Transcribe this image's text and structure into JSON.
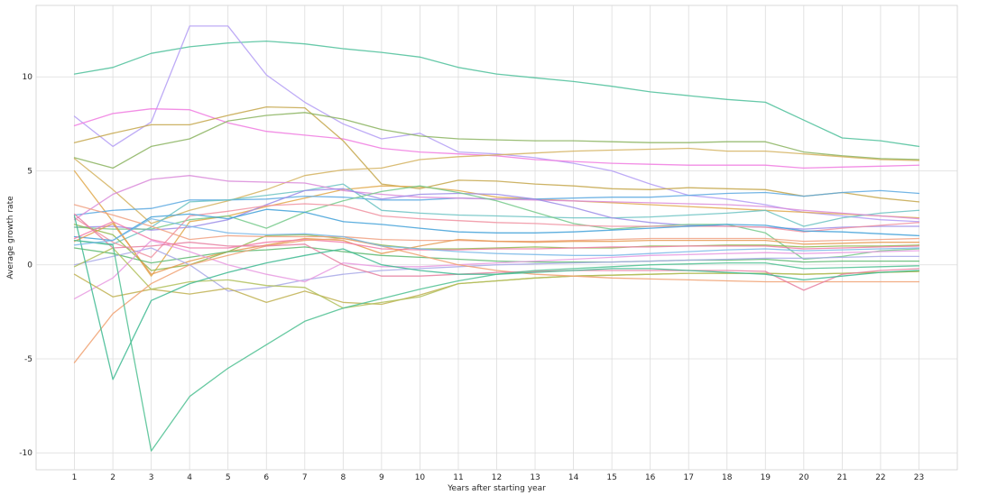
{
  "chart_data": {
    "type": "line",
    "xlabel": "Years after starting year",
    "ylabel": "Average growth rate",
    "x": [
      1,
      2,
      3,
      4,
      5,
      6,
      7,
      8,
      9,
      10,
      11,
      12,
      13,
      14,
      15,
      16,
      17,
      18,
      19,
      20,
      21,
      22,
      23
    ],
    "xlim": [
      0.0,
      24.0
    ],
    "ylim": [
      -10.9,
      13.8
    ],
    "xticks": [
      "1",
      "2",
      "3",
      "4",
      "5",
      "6",
      "7",
      "8",
      "9",
      "10",
      "11",
      "12",
      "13",
      "14",
      "15",
      "16",
      "17",
      "18",
      "19",
      "20",
      "21",
      "22",
      "23"
    ],
    "yticks": [
      -10,
      -5,
      0,
      5,
      10
    ],
    "ytick_labels": [
      "-10",
      "-5",
      "0",
      "5",
      "10"
    ],
    "grid": true,
    "legend": "none",
    "series": [
      {
        "color": "#4cbf9a",
        "values": [
          10.15,
          10.5,
          11.25,
          11.6,
          11.8,
          11.9,
          11.75,
          11.5,
          11.3,
          11.05,
          10.5,
          10.15,
          9.95,
          9.75,
          9.5,
          9.2,
          9.0,
          8.8,
          8.65,
          7.7,
          6.75,
          6.6,
          6.3
        ]
      },
      {
        "color": "#b39cf5",
        "values": [
          7.9,
          6.3,
          7.6,
          12.7,
          12.7,
          10.1,
          8.65,
          7.5,
          6.7,
          7.0,
          6.0,
          5.9,
          5.7,
          5.4,
          5.0,
          4.3,
          3.7,
          3.5,
          3.2,
          2.8,
          2.6,
          2.4,
          2.3
        ]
      },
      {
        "color": "#f07ae0",
        "values": [
          7.4,
          8.05,
          8.3,
          8.25,
          7.55,
          7.1,
          6.9,
          6.7,
          6.2,
          6.0,
          5.9,
          5.8,
          5.6,
          5.5,
          5.4,
          5.35,
          5.3,
          5.3,
          5.3,
          5.15,
          5.2,
          5.25,
          5.3
        ]
      },
      {
        "color": "#c4a64a",
        "values": [
          6.5,
          7.0,
          7.45,
          7.45,
          7.95,
          8.4,
          8.35,
          6.6,
          4.3,
          4.05,
          4.5,
          4.45,
          4.3,
          4.2,
          4.05,
          4.0,
          4.1,
          4.05,
          4.0,
          3.65,
          3.85,
          3.55,
          3.35
        ]
      },
      {
        "color": "#8ab35e",
        "values": [
          5.7,
          5.15,
          6.3,
          6.7,
          7.65,
          7.95,
          8.1,
          7.75,
          7.2,
          6.85,
          6.7,
          6.65,
          6.6,
          6.6,
          6.55,
          6.5,
          6.5,
          6.55,
          6.55,
          6.0,
          5.8,
          5.65,
          5.6
        ]
      },
      {
        "color": "#d4b25e",
        "values": [
          5.65,
          4.0,
          2.2,
          2.9,
          3.4,
          4.0,
          4.75,
          5.05,
          5.15,
          5.6,
          5.75,
          5.85,
          5.95,
          6.05,
          6.1,
          6.15,
          6.2,
          6.05,
          6.05,
          5.9,
          5.75,
          5.6,
          5.55
        ]
      },
      {
        "color": "#e0a84a",
        "values": [
          5.0,
          2.3,
          -0.6,
          2.3,
          2.6,
          3.1,
          3.55,
          4.0,
          4.2,
          4.15,
          3.95,
          3.6,
          3.5,
          3.4,
          3.3,
          3.2,
          3.1,
          3.0,
          2.9,
          2.8,
          2.7,
          2.6,
          2.5
        ]
      },
      {
        "color": "#5aa8e0",
        "values": [
          2.65,
          2.9,
          3.0,
          3.45,
          3.45,
          3.5,
          3.65,
          3.6,
          3.45,
          3.45,
          3.55,
          3.5,
          3.5,
          3.55,
          3.6,
          3.6,
          3.7,
          3.8,
          3.85,
          3.65,
          3.85,
          3.95,
          3.8
        ]
      },
      {
        "color": "#6ac2c2",
        "values": [
          1.3,
          1.1,
          2.0,
          3.35,
          3.45,
          3.7,
          3.95,
          4.3,
          2.9,
          2.75,
          2.65,
          2.6,
          2.55,
          2.5,
          2.5,
          2.55,
          2.65,
          2.75,
          2.9,
          2.05,
          2.5,
          2.75,
          2.9
        ]
      },
      {
        "color": "#d98ad9",
        "values": [
          2.4,
          3.75,
          4.55,
          4.75,
          4.45,
          4.4,
          4.35,
          3.95,
          3.75,
          3.6,
          3.55,
          3.5,
          3.45,
          3.4,
          3.35,
          3.3,
          3.25,
          3.2,
          3.1,
          2.9,
          2.75,
          2.6,
          2.45
        ]
      },
      {
        "color": "#9b8ce8",
        "values": [
          2.0,
          2.05,
          1.85,
          2.0,
          2.4,
          3.2,
          3.95,
          4.05,
          3.5,
          3.75,
          3.8,
          3.75,
          3.5,
          3.05,
          2.5,
          2.25,
          2.1,
          2.05,
          2.0,
          1.9,
          2.0,
          2.05,
          2.05
        ]
      },
      {
        "color": "#74c98a",
        "values": [
          2.0,
          1.9,
          1.9,
          2.4,
          2.6,
          1.95,
          2.8,
          3.4,
          3.9,
          4.2,
          3.85,
          3.4,
          2.8,
          2.2,
          1.9,
          2.05,
          2.15,
          2.15,
          1.7,
          0.3,
          0.45,
          0.75,
          0.85
        ]
      },
      {
        "color": "#f090a0",
        "values": [
          2.5,
          1.2,
          0.4,
          2.6,
          2.85,
          3.15,
          3.25,
          3.15,
          2.6,
          2.45,
          2.35,
          2.25,
          2.2,
          2.1,
          2.05,
          2.05,
          2.05,
          2.05,
          2.0,
          1.75,
          1.95,
          2.1,
          2.25
        ]
      },
      {
        "color": "#8fb84e",
        "values": [
          2.15,
          1.6,
          -0.3,
          0.0,
          0.7,
          1.55,
          1.6,
          1.4,
          1.05,
          0.85,
          0.85,
          0.9,
          0.95,
          0.9,
          0.9,
          1.0,
          1.0,
          1.05,
          1.05,
          0.95,
          1.0,
          1.0,
          1.05
        ]
      },
      {
        "color": "#3fa0d8",
        "values": [
          1.5,
          1.3,
          2.55,
          2.7,
          2.45,
          2.95,
          2.8,
          2.3,
          2.15,
          1.95,
          1.75,
          1.7,
          1.7,
          1.75,
          1.85,
          1.95,
          2.05,
          2.15,
          2.1,
          1.8,
          1.75,
          1.65,
          1.55
        ]
      },
      {
        "color": "#f0a080",
        "values": [
          3.2,
          2.65,
          2.05,
          1.35,
          1.55,
          1.5,
          1.5,
          1.5,
          1.35,
          1.3,
          1.3,
          1.25,
          1.25,
          1.3,
          1.35,
          1.4,
          1.4,
          1.4,
          1.4,
          1.25,
          1.3,
          1.35,
          1.4
        ]
      },
      {
        "color": "#e59a50",
        "values": [
          1.25,
          2.2,
          -0.5,
          0.2,
          0.7,
          1.05,
          1.4,
          1.3,
          0.6,
          1.0,
          1.35,
          1.25,
          1.2,
          1.25,
          1.25,
          1.3,
          1.3,
          1.3,
          1.3,
          1.1,
          1.15,
          1.2,
          1.2
        ]
      },
      {
        "color": "#f27aa8",
        "values": [
          1.4,
          2.3,
          1.35,
          0.9,
          0.9,
          1.2,
          1.35,
          1.2,
          0.85,
          0.8,
          0.8,
          0.85,
          0.85,
          0.9,
          0.95,
          0.95,
          1.0,
          1.0,
          1.0,
          0.85,
          0.9,
          0.95,
          1.0
        ]
      },
      {
        "color": "#5cb870",
        "values": [
          0.9,
          0.6,
          0.1,
          0.4,
          0.7,
          0.8,
          0.95,
          0.7,
          0.5,
          0.4,
          0.3,
          0.2,
          0.15,
          0.15,
          0.15,
          0.2,
          0.25,
          0.25,
          0.3,
          0.15,
          0.2,
          0.2,
          0.2
        ]
      },
      {
        "color": "#a8a8e8",
        "values": [
          0.0,
          0.45,
          0.9,
          0.0,
          -1.4,
          -1.2,
          -0.8,
          -0.5,
          -0.3,
          -0.2,
          -0.1,
          0.0,
          0.05,
          0.1,
          0.15,
          0.2,
          0.25,
          0.3,
          0.35,
          0.35,
          0.4,
          0.45,
          0.45
        ]
      },
      {
        "color": "#e89ae0",
        "values": [
          -1.8,
          -0.7,
          1.3,
          0.7,
          0.0,
          -0.5,
          -0.9,
          0.1,
          -0.1,
          -0.1,
          0.0,
          0.1,
          0.2,
          0.3,
          0.4,
          0.5,
          0.55,
          0.6,
          0.65,
          0.6,
          0.65,
          0.7,
          0.75
        ]
      },
      {
        "color": "#c0b050",
        "values": [
          -0.5,
          -1.7,
          -1.3,
          -1.55,
          -1.25,
          -2.0,
          -1.4,
          -2.0,
          -2.1,
          -1.6,
          -1.0,
          -0.85,
          -0.7,
          -0.6,
          -0.55,
          -0.5,
          -0.45,
          -0.45,
          -0.45,
          -0.5,
          -0.45,
          -0.4,
          -0.35
        ]
      },
      {
        "color": "#b0c05a",
        "values": [
          -0.1,
          0.9,
          -1.3,
          -0.9,
          -0.8,
          -1.1,
          -1.2,
          -2.3,
          -2.0,
          -1.7,
          -1.0,
          -0.85,
          -0.7,
          -0.6,
          -0.55,
          -0.5,
          -0.45,
          -0.45,
          -0.45,
          -0.5,
          -0.45,
          -0.4,
          -0.35
        ]
      },
      {
        "color": "#f0a070",
        "values": [
          -5.2,
          -2.6,
          -1.0,
          0.0,
          0.5,
          1.0,
          1.3,
          1.4,
          1.0,
          0.5,
          0.0,
          -0.3,
          -0.5,
          -0.6,
          -0.7,
          -0.75,
          -0.8,
          -0.85,
          -0.9,
          -0.9,
          -0.9,
          -0.9,
          -0.9
        ]
      },
      {
        "color": "#e67fa0",
        "values": [
          2.7,
          0.9,
          1.0,
          1.2,
          1.0,
          1.0,
          1.1,
          0.0,
          -0.6,
          -0.6,
          -0.5,
          -0.4,
          -0.35,
          -0.3,
          -0.3,
          -0.3,
          -0.3,
          -0.3,
          -0.35,
          -1.35,
          -0.5,
          -0.3,
          -0.2
        ]
      },
      {
        "color": "#3cb890",
        "values": [
          2.6,
          -6.1,
          -1.9,
          -1.0,
          -0.4,
          0.1,
          0.5,
          0.85,
          0.0,
          -0.3,
          -0.5,
          -0.5,
          -0.4,
          -0.3,
          -0.2,
          -0.2,
          -0.3,
          -0.4,
          -0.5,
          -0.8,
          -0.6,
          -0.4,
          -0.3
        ]
      },
      {
        "color": "#4cc090",
        "values": [
          1.3,
          1.05,
          -9.9,
          -7.0,
          -5.5,
          -4.25,
          -3.0,
          -2.3,
          -1.8,
          -1.3,
          -0.85,
          -0.5,
          -0.3,
          -0.2,
          -0.1,
          0.0,
          0.05,
          0.1,
          0.1,
          -0.2,
          -0.15,
          -0.1,
          -0.05
        ]
      },
      {
        "color": "#7ab8e8",
        "values": [
          1.05,
          1.3,
          2.45,
          2.05,
          1.7,
          1.6,
          1.65,
          1.5,
          1.0,
          0.85,
          0.7,
          0.6,
          0.55,
          0.5,
          0.5,
          0.6,
          0.7,
          0.8,
          0.85,
          0.75,
          0.8,
          0.85,
          0.9
        ]
      }
    ]
  }
}
